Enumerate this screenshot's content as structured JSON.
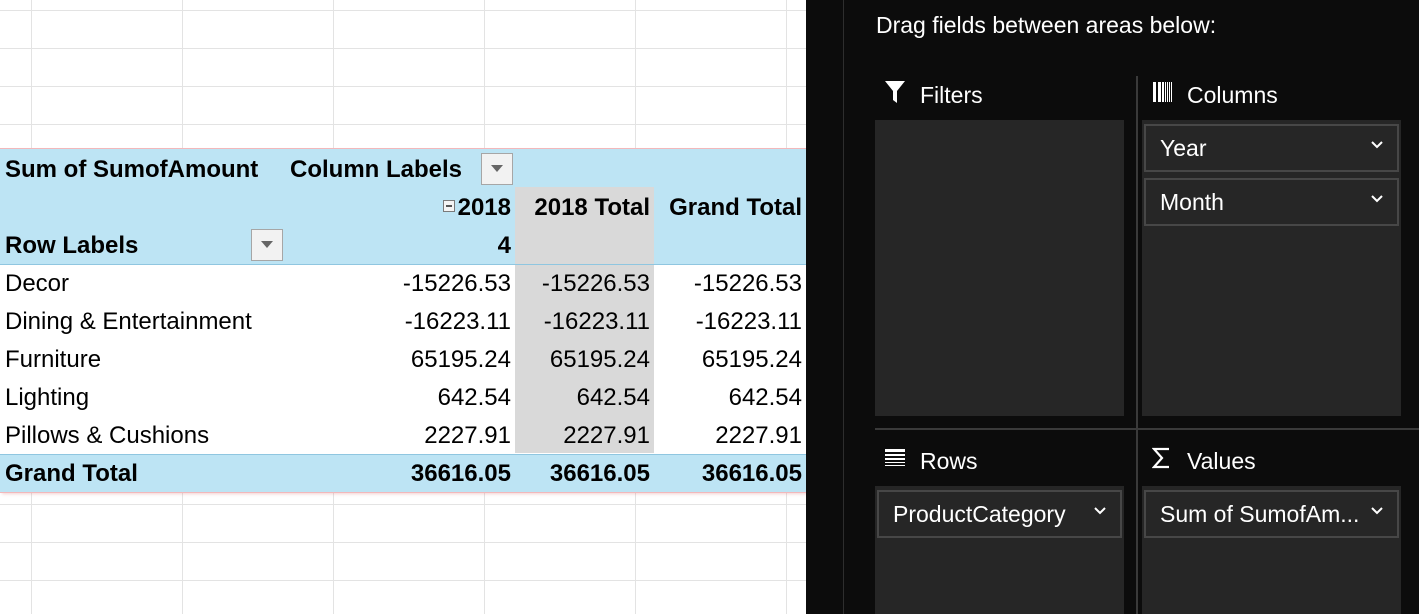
{
  "pivot": {
    "value_header": "Sum of SumofAmount",
    "column_labels": "Column Labels",
    "year": "2018",
    "month": "4",
    "year_total_header": "2018 Total",
    "grand_total_header": "Grand Total",
    "row_labels": "Row Labels",
    "rows": [
      {
        "label": "Decor",
        "v1": "-15226.53",
        "v2": "-15226.53",
        "v3": "-15226.53"
      },
      {
        "label": "Dining & Entertainment",
        "v1": "-16223.11",
        "v2": "-16223.11",
        "v3": "-16223.11"
      },
      {
        "label": "Furniture",
        "v1": "65195.24",
        "v2": "65195.24",
        "v3": "65195.24"
      },
      {
        "label": "Lighting",
        "v1": "642.54",
        "v2": "642.54",
        "v3": "642.54"
      },
      {
        "label": "Pillows & Cushions",
        "v1": "2227.91",
        "v2": "2227.91",
        "v3": "2227.91"
      }
    ],
    "grand_total": {
      "label": "Grand Total",
      "v1": "36616.05",
      "v2": "36616.05",
      "v3": "36616.05"
    }
  },
  "pane": {
    "instruction": "Drag fields between areas below:",
    "filters_label": "Filters",
    "columns_label": "Columns",
    "rows_label": "Rows",
    "values_label": "Values",
    "columns_fields": [
      "Year",
      "Month"
    ],
    "rows_fields": [
      "ProductCategory"
    ],
    "values_fields": [
      "Sum of SumofAm..."
    ]
  },
  "colors": {
    "pivot_header": "#bde4f4",
    "subtotal_column": "#d9d9d9",
    "pane_background": "#0c0c0c",
    "pane_area": "#262626"
  }
}
